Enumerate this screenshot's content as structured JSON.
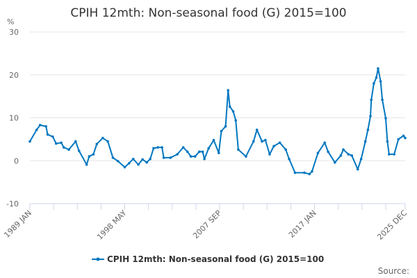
{
  "chart_data": {
    "type": "line",
    "title": "CPIH 12mth: Non-seasonal food (G) 2015=100",
    "ylabel": "%",
    "xlabel": "",
    "ylim": [
      -10,
      30
    ],
    "yticks": [
      -10,
      0,
      10,
      20,
      30
    ],
    "xlim": [
      "1989 JAN",
      "2025 DEC"
    ],
    "xtick_labels": [
      "1989 JAN",
      "1998 MAY",
      "2007 SEP",
      "2017 JAN",
      "2025 DEC"
    ],
    "grid": true,
    "legend_position": "bottom",
    "color": "#0077c0",
    "source_label": "Source:",
    "series": [
      {
        "name": "CPIH 12mth: Non-seasonal food (G) 2015=100",
        "x": [
          "1989 JAN",
          "1989 SEP",
          "1990 JAN",
          "1990 AUG",
          "1990 OCT",
          "1991 APR",
          "1991 AUG",
          "1992 FEB",
          "1992 MAY",
          "1992 NOV",
          "1993 JUL",
          "1993 NOV",
          "1994 AUG",
          "1994 NOV",
          "1995 APR",
          "1995 AUG",
          "1996 MAR",
          "1996 SEP",
          "1997 MAR",
          "1997 SEP",
          "1998 MAY",
          "1998 OCT",
          "1999 MAR",
          "1999 SEP",
          "2000 FEB",
          "2000 JUL",
          "2000 NOV",
          "2001 MAR",
          "2001 AUG",
          "2002 JAN",
          "2002 MAR",
          "2002 NOV",
          "2003 JUL",
          "2004 FEB",
          "2004 JUL",
          "2004 NOV",
          "2005 APR",
          "2005 SEP",
          "2006 JAN",
          "2006 MAR",
          "2006 AUG",
          "2007 FEB",
          "2007 AUG",
          "2007 NOV",
          "2008 APR",
          "2008 JUL",
          "2008 SEP",
          "2009 JAN",
          "2009 APR",
          "2009 JUL",
          "2010 APR",
          "2011 JAN",
          "2011 MAY",
          "2011 NOV",
          "2012 MAR",
          "2012 AUG",
          "2013 JAN",
          "2013 AUG",
          "2014 MAR",
          "2014 JUL",
          "2015 FEB",
          "2016 JAN",
          "2016 JUL",
          "2016 OCT",
          "2017 MAY",
          "2018 JAN",
          "2018 MAY",
          "2019 JAN",
          "2019 AUG",
          "2019 NOV",
          "2020 MAY",
          "2020 SEP",
          "2021 APR",
          "2021 AUG",
          "2022 JAN",
          "2022 APR",
          "2022 JUL",
          "2022 AUG",
          "2022 NOV",
          "2023 FEB",
          "2023 APR",
          "2023 JUL",
          "2023 SEP",
          "2024 JAN",
          "2024 MAR",
          "2024 MAY",
          "2024 NOV",
          "2025 APR",
          "2025 OCT",
          "2025 DEC"
        ],
        "y": [
          4.5,
          7.2,
          8.3,
          8.0,
          6.1,
          5.6,
          4.0,
          4.2,
          3.1,
          2.6,
          4.5,
          2.3,
          -0.9,
          1.0,
          1.5,
          3.9,
          5.3,
          4.5,
          0.7,
          -0.1,
          -1.5,
          -0.6,
          0.4,
          -0.9,
          0.3,
          -0.4,
          0.4,
          2.9,
          3.1,
          3.1,
          0.7,
          0.7,
          1.5,
          3.1,
          2.1,
          1.0,
          1.0,
          2.1,
          2.1,
          0.4,
          2.9,
          4.8,
          1.8,
          6.9,
          8.0,
          16.4,
          12.6,
          11.5,
          9.4,
          2.6,
          1.0,
          4.5,
          7.2,
          4.5,
          4.8,
          1.5,
          3.4,
          4.2,
          2.6,
          0.4,
          -2.8,
          -2.8,
          -3.1,
          -2.5,
          1.8,
          4.2,
          2.1,
          -0.4,
          1.2,
          2.6,
          1.5,
          1.2,
          -2.0,
          0.4,
          4.5,
          7.2,
          10.4,
          14.2,
          18.0,
          19.4,
          21.5,
          18.5,
          14.2,
          9.9,
          4.5,
          1.5,
          1.5,
          5.0,
          5.8,
          5.3
        ]
      }
    ]
  }
}
